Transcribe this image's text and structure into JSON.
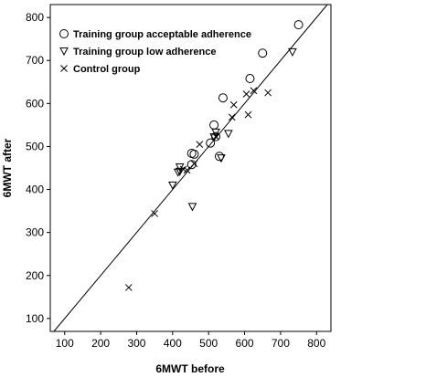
{
  "chart_data": {
    "type": "scatter",
    "title": "",
    "xlabel": "6MWT before",
    "ylabel": "6MWT after",
    "xlim": [
      60,
      840
    ],
    "ylim": [
      70,
      830
    ],
    "x_ticks": [
      100,
      200,
      300,
      400,
      500,
      600,
      700,
      800
    ],
    "y_ticks": [
      100,
      200,
      300,
      400,
      500,
      600,
      700,
      800
    ],
    "grid": false,
    "legend_position": "top-left",
    "reference_line": "identity (y = x)",
    "series": [
      {
        "name": "Training group acceptable adherence",
        "marker": "circle",
        "points": [
          [
            750,
            783
          ],
          [
            650,
            717
          ],
          [
            615,
            658
          ],
          [
            540,
            613
          ],
          [
            515,
            550
          ],
          [
            520,
            523
          ],
          [
            505,
            508
          ],
          [
            460,
            482
          ],
          [
            453,
            484
          ],
          [
            453,
            458
          ],
          [
            530,
            477
          ]
        ]
      },
      {
        "name": "Training group low adherence",
        "marker": "triangle-down",
        "points": [
          [
            733,
            720
          ],
          [
            555,
            530
          ],
          [
            535,
            473
          ],
          [
            520,
            533
          ],
          [
            515,
            522
          ],
          [
            420,
            452
          ],
          [
            415,
            440
          ],
          [
            400,
            410
          ],
          [
            455,
            360
          ],
          [
            420,
            442
          ]
        ]
      },
      {
        "name": "Control group",
        "marker": "x",
        "points": [
          [
            665,
            625
          ],
          [
            625,
            630
          ],
          [
            605,
            622
          ],
          [
            610,
            574
          ],
          [
            570,
            597
          ],
          [
            565,
            568
          ],
          [
            520,
            523
          ],
          [
            475,
            505
          ],
          [
            460,
            460
          ],
          [
            430,
            447
          ],
          [
            440,
            445
          ],
          [
            350,
            344
          ],
          [
            278,
            172
          ]
        ]
      }
    ]
  }
}
